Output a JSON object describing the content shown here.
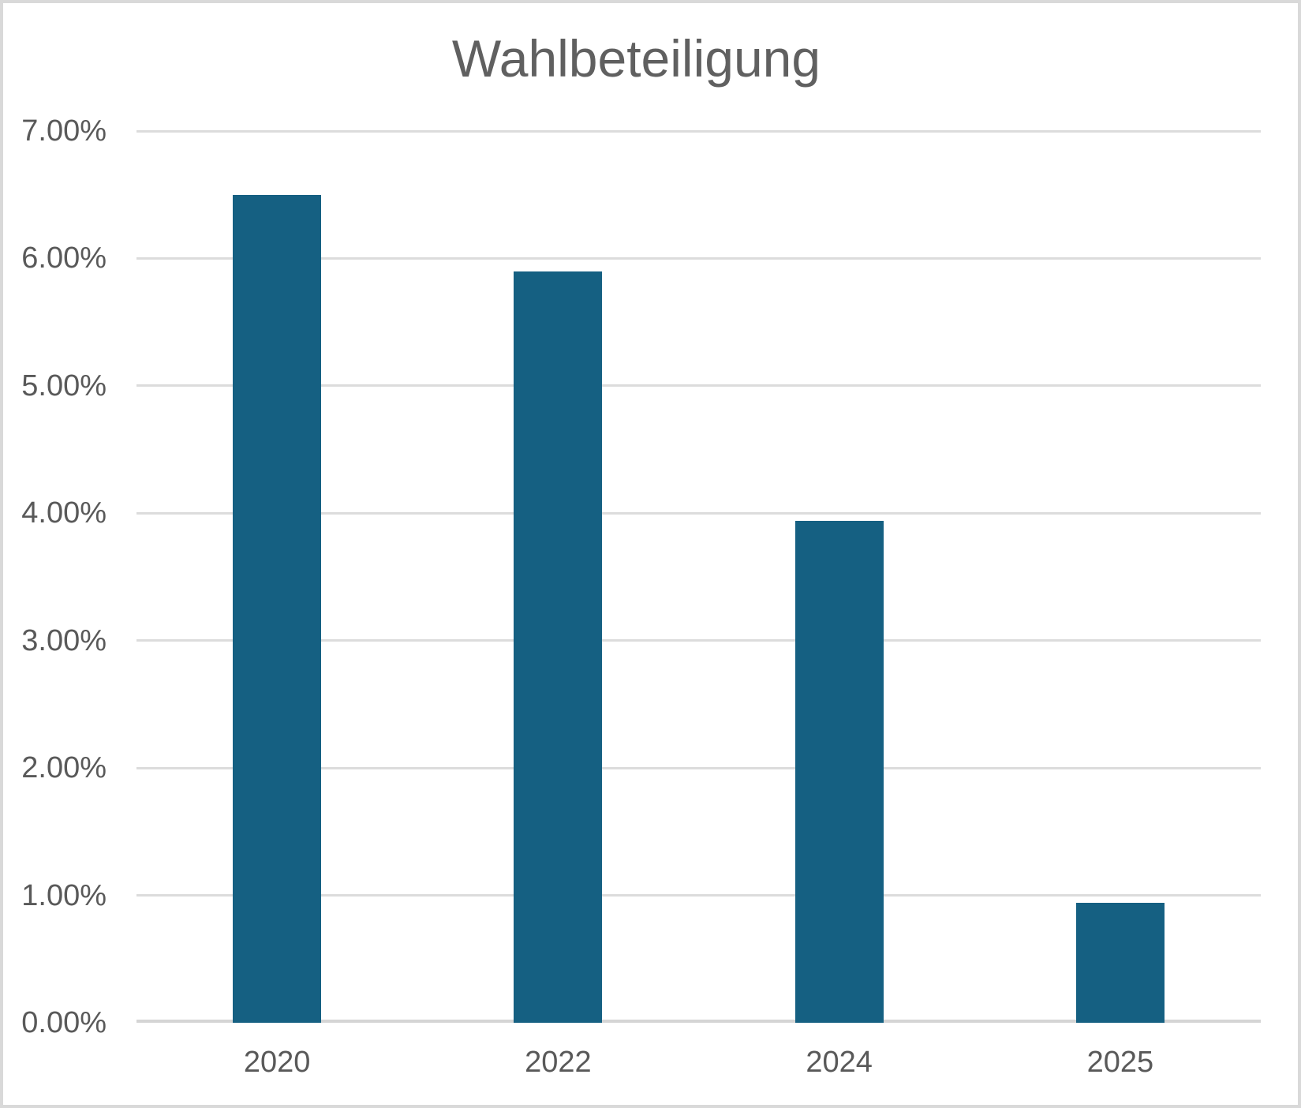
{
  "title": "Wahlbeteiligung",
  "colors": {
    "bar": "#156082",
    "gridline": "#dcdcdc",
    "axis_line": "#d5d5d5",
    "axis_text": "#595959",
    "title_text": "#606060",
    "frame_border": "#d9d9d9",
    "background": "#ffffff"
  },
  "chart_data": {
    "type": "bar",
    "title": "Wahlbeteiligung",
    "categories": [
      "2020",
      "2022",
      "2024",
      "2025"
    ],
    "values": [
      6.5,
      5.9,
      3.94,
      0.94
    ],
    "value_unit": "%",
    "xlabel": "",
    "ylabel": "",
    "ylim": [
      0,
      7
    ],
    "ytick_step": 1,
    "ytick_labels": [
      "0.00%",
      "1.00%",
      "2.00%",
      "3.00%",
      "4.00%",
      "5.00%",
      "6.00%",
      "7.00%"
    ],
    "grid": true,
    "legend": false,
    "bar_color": "#156082"
  }
}
